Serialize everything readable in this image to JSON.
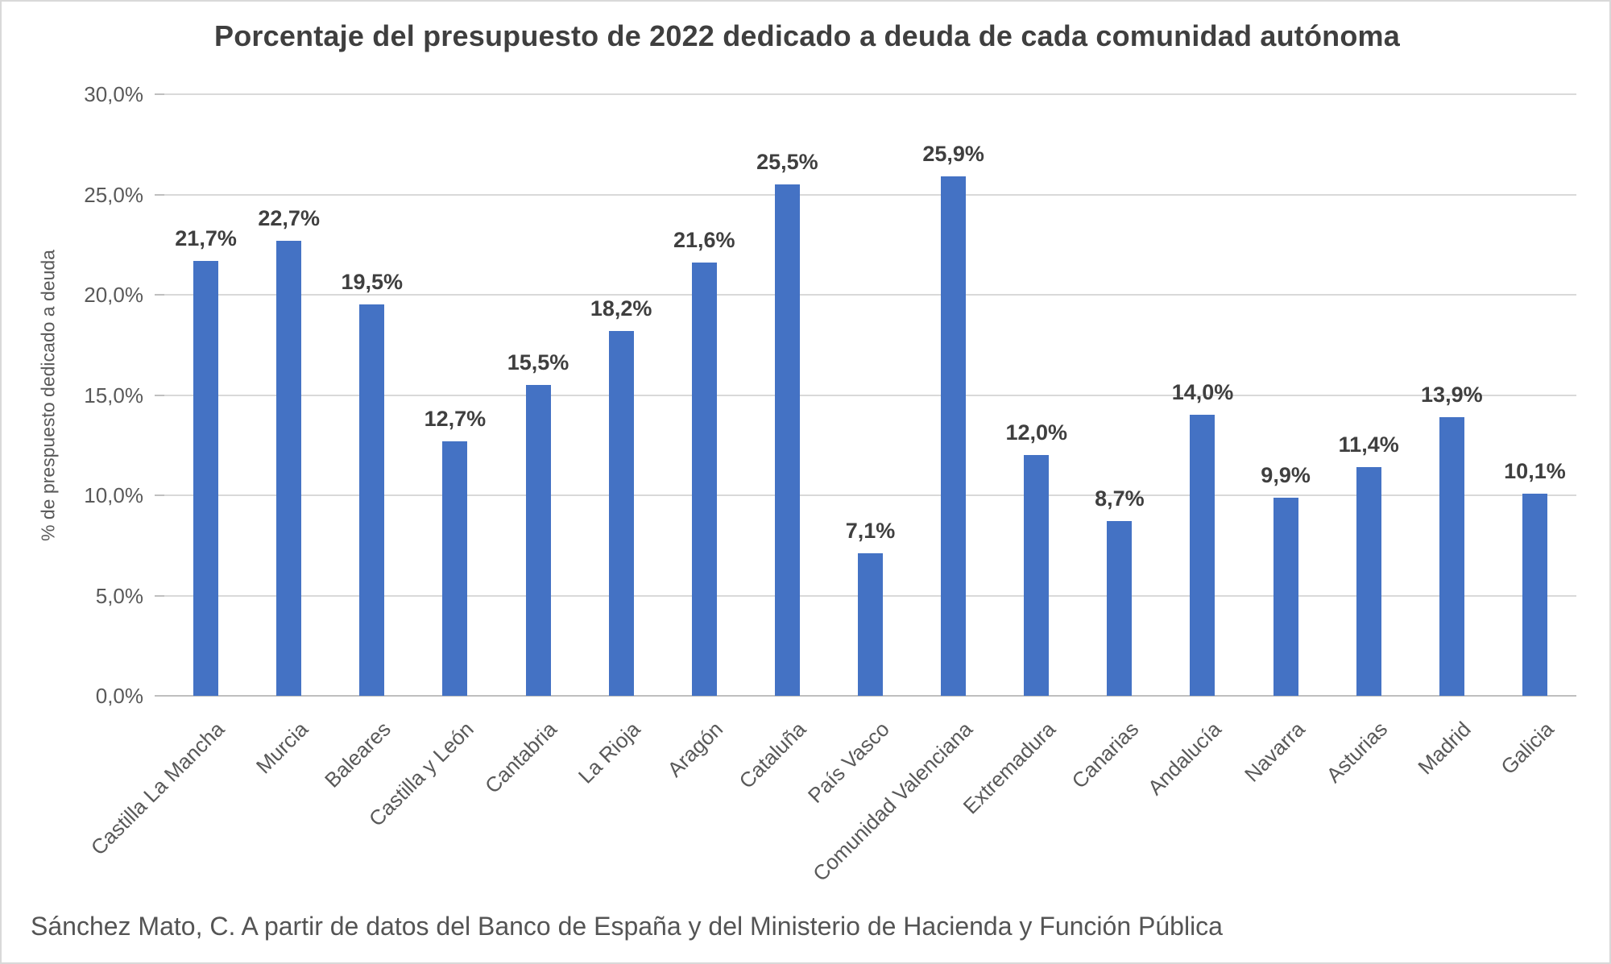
{
  "figure": {
    "footer": "Sánchez Mato, C.  A partir de datos del Banco de España y del Ministerio de Hacienda y Función Pública"
  },
  "chart_data": {
    "type": "bar",
    "title": "Porcentaje del presupuesto de 2022 dedicado a deuda de cada comunidad autónoma",
    "xlabel": "",
    "ylabel": "% de prespuesto dedicado a deuda",
    "categories": [
      "Castilla La Mancha",
      "Murcia",
      "Baleares",
      "Castilla y León",
      "Cantabria",
      "La Rioja",
      "Aragón",
      "Cataluña",
      "País Vasco",
      "Comunidad Valenciana",
      "Extremadura",
      "Canarias",
      "Andalucía",
      "Navarra",
      "Asturias",
      "Madrid",
      "Galicia"
    ],
    "values": [
      21.7,
      22.7,
      19.5,
      12.7,
      15.5,
      18.2,
      21.6,
      25.5,
      7.1,
      25.9,
      12.0,
      8.7,
      14.0,
      9.9,
      11.4,
      13.9,
      10.1
    ],
    "value_labels": [
      "21,7%",
      "22,7%",
      "19,5%",
      "12,7%",
      "15,5%",
      "18,2%",
      "21,6%",
      "25,5%",
      "7,1%",
      "25,9%",
      "12,0%",
      "8,7%",
      "14,0%",
      "9,9%",
      "11,4%",
      "13,9%",
      "10,1%"
    ],
    "y_tick_values": [
      0,
      5,
      10,
      15,
      20,
      25,
      30
    ],
    "y_tick_labels": [
      "0,0%",
      "5,0%",
      "10,0%",
      "15,0%",
      "20,0%",
      "25,0%",
      "30,0%"
    ],
    "ylim": [
      0,
      30
    ],
    "grid": true,
    "legend": "none",
    "bar_color": "#4472c4"
  },
  "colors": {
    "bar": "#4472c4",
    "gridline": "#d9d9d9",
    "axis_line": "#bfbfbf",
    "title_text": "#3f3f3f",
    "tick_text": "#595959"
  }
}
